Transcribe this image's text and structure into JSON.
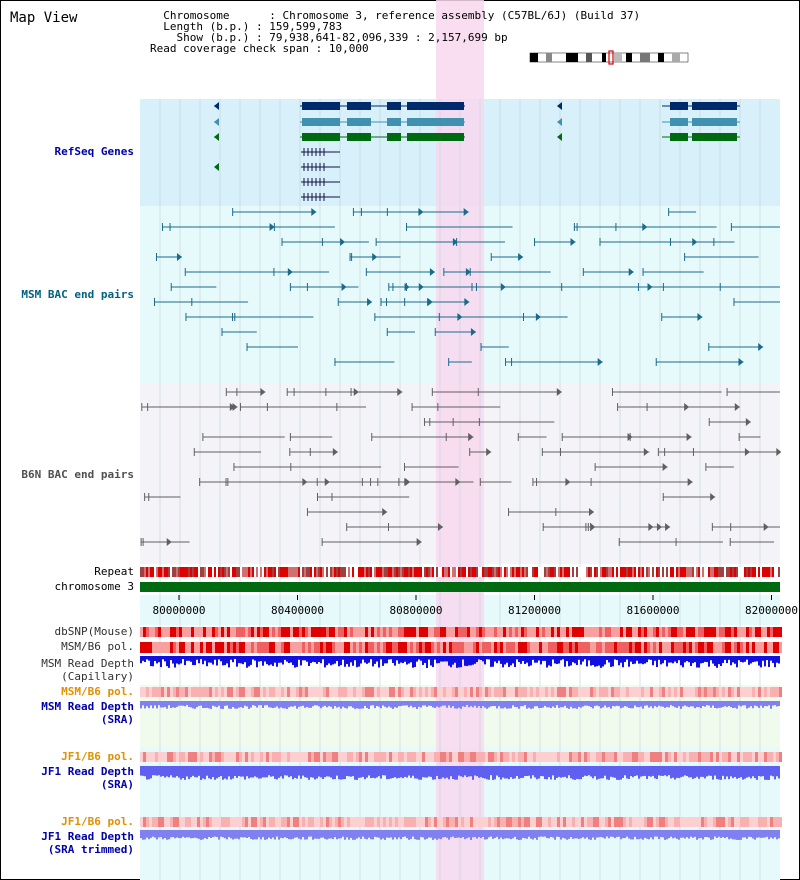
{
  "title": "Map View",
  "info": {
    "chromosome_key": "Chromosome",
    "chromosome_val": "Chromosome 3, reference assembly (C57BL/6J) (Build 37)",
    "length_key": "Length (b.p.)",
    "length_val": "159,599,783",
    "show_key": "Show (b.p.)",
    "show_val": "79,938,641-82,096,339 : 2,157,699 bp",
    "span_key": "Read coverage check span",
    "span_val": "10,000"
  },
  "tracks": {
    "refseq": "RefSeq Genes",
    "msm_bac": "MSM BAC end pairs",
    "b6n_bac": "B6N BAC end pairs",
    "repeat": "Repeat",
    "chromosome": "chromosome 3",
    "dbsnp": "dbSNP(Mouse)",
    "msm_b6_pol_1": "MSM/B6 pol.",
    "msm_depth_cap_1": "MSM Read Depth",
    "msm_depth_cap_2": "(Capillary)",
    "msm_b6_pol_2": "MSM/B6 pol.",
    "msm_depth_sra_1": "MSM Read Depth",
    "msm_depth_sra_2": "(SRA)",
    "jf1_b6_pol_1": "JF1/B6 pol.",
    "jf1_depth_sra_1": "JF1 Read Depth",
    "jf1_depth_sra_2": "(SRA)",
    "jf1_b6_pol_2": "JF1/B6 pol.",
    "jf1_depth_trim_1": "JF1 Read Depth",
    "jf1_depth_trim_2": "(SRA trimmed)"
  },
  "axis": {
    "ticks": [
      "80000000",
      "80400000",
      "80800000",
      "81200000",
      "81600000",
      "82000000"
    ]
  },
  "colors": {
    "refseq_bg": "#d8f0fa",
    "msm_bg": "#e6fafc",
    "b6n_bg": "#f4f4f8",
    "highlight": "#f8d8f0",
    "label_blue": "#0000aa",
    "label_teal": "#006080",
    "label_gray": "#505050",
    "label_orange": "#e09000"
  }
}
